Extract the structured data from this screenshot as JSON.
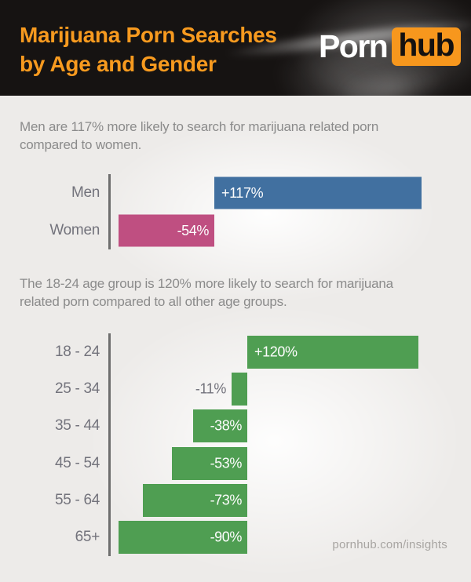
{
  "header": {
    "title_line1": "Marijuana Porn Searches",
    "title_line2": "by Age and Gender",
    "logo": {
      "part1": "Porn",
      "part2": "hub"
    }
  },
  "main": {
    "intro_gender": {
      "line1": "Men are 117% more likely to search for marijuana related porn",
      "line2": "compared to women."
    },
    "intro_age": {
      "line1": "The 18-24 age group is 120% more likely to search for marijuana",
      "line2": "related porn compared to all other age groups."
    },
    "footer_link": "pornhub.com/insights"
  },
  "colors": {
    "header_background": "#161312",
    "title_orange": "#f79a1f",
    "logo_orange": "#f7971d",
    "bar_blue": "#4170a0",
    "bar_pink": "#bf4f81",
    "bar_green": "#4f9e52",
    "axis_gray": "#6e6e6e"
  },
  "chart_data": [
    {
      "type": "bar",
      "orientation": "horizontal-diverging",
      "categories": [
        "Men",
        "Women"
      ],
      "values": [
        117,
        -54
      ],
      "value_labels": [
        "+117%",
        "-54%"
      ],
      "colors": [
        "#4170a0",
        "#bf4f81"
      ],
      "baseline": 0,
      "xlim": [
        -60,
        134
      ],
      "grid": false,
      "legend": false,
      "note": "relative likelihood of marijuana related porn searches by gender"
    },
    {
      "type": "bar",
      "orientation": "horizontal-diverging",
      "categories": [
        "18 - 24",
        "25 - 34",
        "35 - 44",
        "45 - 54",
        "55 - 64",
        "65+"
      ],
      "values": [
        120,
        -11,
        -38,
        -53,
        -73,
        -90
      ],
      "value_labels": [
        "+120%",
        "-11%",
        "-38%",
        "-53%",
        "-73%",
        "-90%"
      ],
      "colors": [
        "#4f9e52",
        "#4f9e52",
        "#4f9e52",
        "#4f9e52",
        "#4f9e52",
        "#4f9e52"
      ],
      "baseline": 0,
      "xlim": [
        -97,
        144
      ],
      "grid": false,
      "legend": false,
      "note": "relative likelihood of marijuana related porn searches by age group"
    }
  ]
}
